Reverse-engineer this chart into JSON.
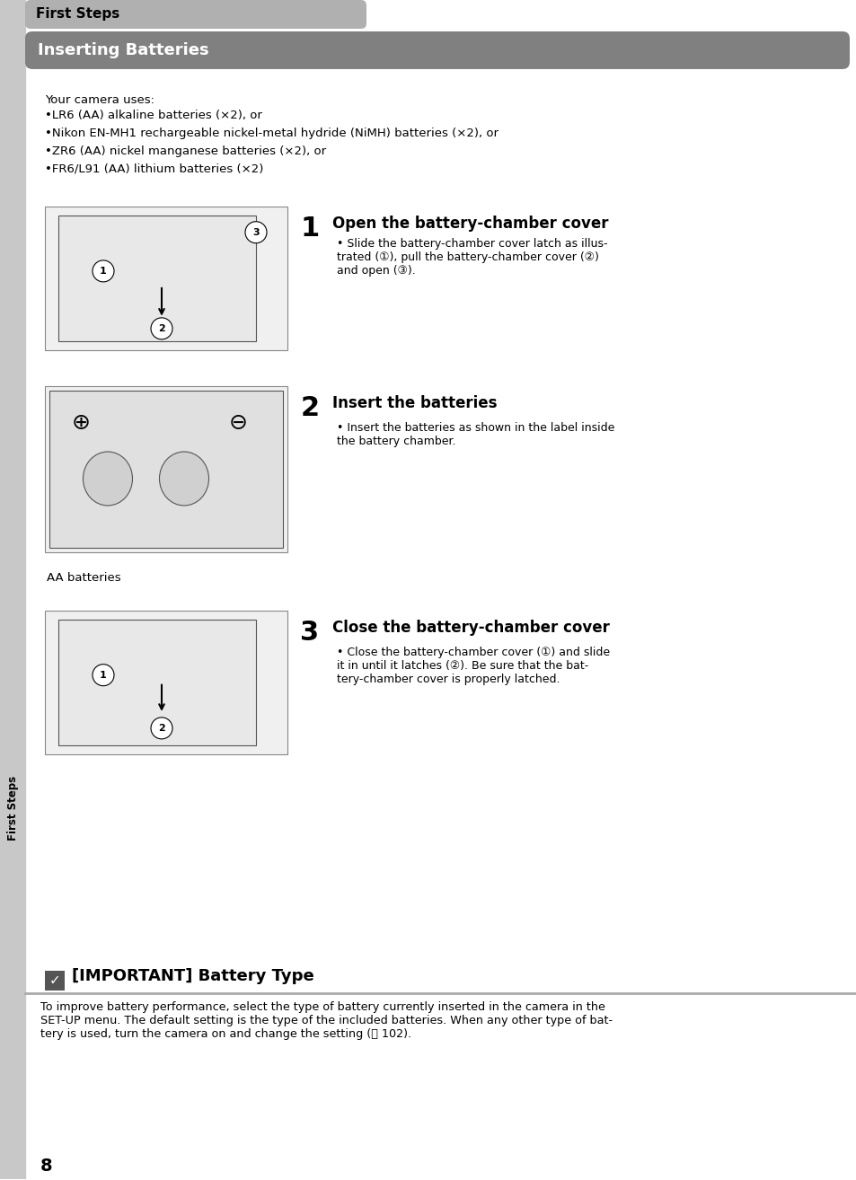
{
  "page_bg": "#ffffff",
  "sidebar_bg": "#c8c8c8",
  "header_tab_bg": "#b0b0b0",
  "header_title_bg": "#808080",
  "header_tab_text": "First Steps",
  "header_title_text": "Inserting Batteries",
  "sidebar_text": "First Steps",
  "intro_text": "Your camera uses:",
  "bullets": [
    "LR6 (AA) alkaline batteries (×2), or",
    "Nikon EN-MH1 rechargeable nickel-metal hydride (NiMH) batteries (×2), or",
    "ZR6 (AA) nickel manganese batteries (×2), or",
    "FR6/L91 (AA) lithium batteries (×2)"
  ],
  "steps": [
    {
      "number": "1",
      "title": "Open the battery-chamber cover",
      "body": "Slide the battery-chamber cover latch as illus-\ntrated (Ð), pull the battery-chamber cover (Ñ)\nand open (Ò)."
    },
    {
      "number": "2",
      "title": "Insert the batteries",
      "body": "Insert the batteries as shown in the label inside\nthe battery chamber."
    },
    {
      "number": "3",
      "title": "Close the battery-chamber cover",
      "body": "Close the battery-chamber cover (Ð) and slide\nit in until it latches (Ñ). Be sure that the bat-\ntery-chamber cover is properly latched."
    }
  ],
  "caption2": "AA batteries",
  "important_title": "[IMPORTANT] Battery Type",
  "important_body": "To improve battery performance, select the type of battery currently inserted in the camera in the\nSET-UP menu. The default setting is the type of the included batteries. When any other type of bat-\ntery is used, turn the camera on and change the setting (ⓘ 102).",
  "page_number": "8",
  "body_font_size": 9.5,
  "title_font_size": 13,
  "step_num_font_size": 22,
  "step_title_font_size": 12,
  "important_title_font_size": 13
}
